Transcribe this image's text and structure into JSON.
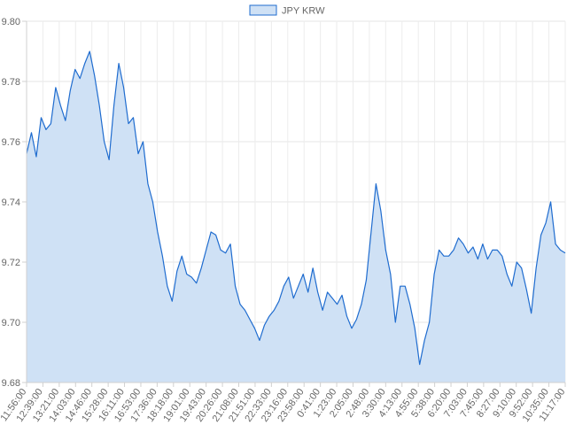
{
  "chart_data": {
    "type": "area",
    "title": "",
    "xlabel": "",
    "ylabel": "",
    "ylim": [
      9.68,
      9.8
    ],
    "y_ticks": [
      "9.80",
      "9.78",
      "9.76",
      "9.74",
      "9.72",
      "9.70",
      "9.68"
    ],
    "x_ticks": [
      "11:56:00",
      "12:39:00",
      "13:21:00",
      "14:03:00",
      "14:46:00",
      "15:28:00",
      "16:11:00",
      "16:53:00",
      "17:36:00",
      "18:18:00",
      "19:01:00",
      "19:43:00",
      "20:26:00",
      "21:08:00",
      "21:51:00",
      "22:33:00",
      "23:16:00",
      "23:58:00",
      "0:41:00",
      "1:23:00",
      "2:05:00",
      "2:48:00",
      "3:30:00",
      "4:13:00",
      "4:55:00",
      "5:38:00",
      "6:20:00",
      "7:03:00",
      "7:45:00",
      "8:27:00",
      "9:10:00",
      "9:52:00",
      "10:35:00",
      "11:17:00"
    ],
    "grid": true,
    "legend_position": "top-center",
    "series": [
      {
        "name": "JPY KRW",
        "line_color": "#1f6ccf",
        "fill_color": "#cfe1f5",
        "values": [
          9.756,
          9.763,
          9.755,
          9.768,
          9.764,
          9.766,
          9.778,
          9.772,
          9.767,
          9.777,
          9.784,
          9.781,
          9.786,
          9.79,
          9.782,
          9.772,
          9.76,
          9.754,
          9.772,
          9.786,
          9.778,
          9.766,
          9.768,
          9.756,
          9.76,
          9.746,
          9.74,
          9.73,
          9.722,
          9.712,
          9.707,
          9.717,
          9.722,
          9.716,
          9.715,
          9.713,
          9.718,
          9.724,
          9.73,
          9.729,
          9.724,
          9.723,
          9.726,
          9.712,
          9.706,
          9.704,
          9.701,
          9.698,
          9.694,
          9.699,
          9.702,
          9.704,
          9.707,
          9.712,
          9.715,
          9.708,
          9.712,
          9.716,
          9.71,
          9.718,
          9.71,
          9.704,
          9.71,
          9.708,
          9.706,
          9.709,
          9.702,
          9.698,
          9.701,
          9.706,
          9.714,
          9.73,
          9.746,
          9.737,
          9.724,
          9.716,
          9.7,
          9.712,
          9.712,
          9.706,
          9.698,
          9.686,
          9.694,
          9.7,
          9.716,
          9.724,
          9.722,
          9.722,
          9.724,
          9.728,
          9.726,
          9.723,
          9.725,
          9.721,
          9.726,
          9.721,
          9.724,
          9.724,
          9.722,
          9.716,
          9.712,
          9.72,
          9.718,
          9.711,
          9.703,
          9.718,
          9.729,
          9.733,
          9.74,
          9.726,
          9.724,
          9.723
        ]
      }
    ]
  }
}
